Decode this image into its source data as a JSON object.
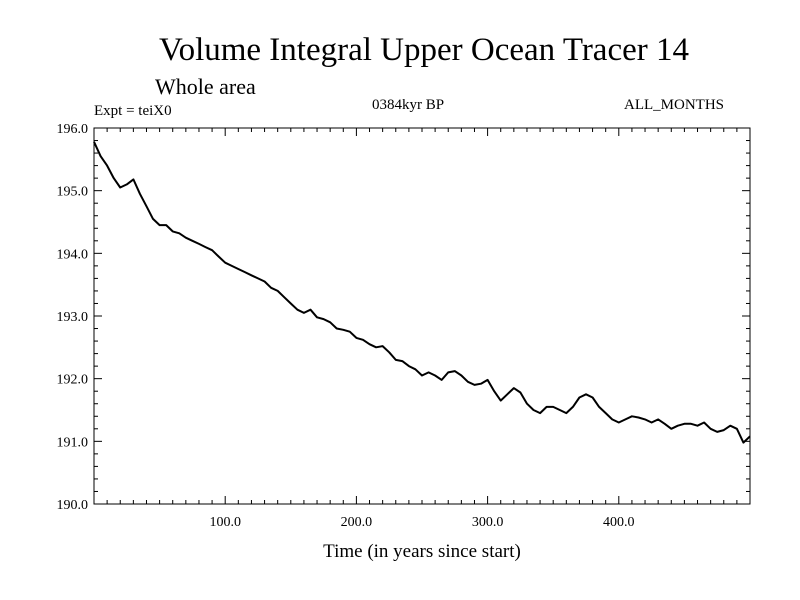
{
  "chart_data": {
    "type": "line",
    "title": "Volume Integral Upper Ocean Tracer 14",
    "subtitle": "Whole area",
    "annotations": {
      "experiment": "Expt = teiX0",
      "period": "0384kyr BP",
      "months": "ALL_MONTHS"
    },
    "xlabel": "Time (in years since start)",
    "ylabel": "",
    "xlim": [
      0,
      500
    ],
    "ylim": [
      190.0,
      196.0
    ],
    "x_ticks": [
      100,
      200,
      300,
      400
    ],
    "x_tick_labels": [
      "100.0",
      "200.0",
      "300.0",
      "400.0"
    ],
    "y_ticks": [
      190,
      191,
      192,
      193,
      194,
      195,
      196
    ],
    "y_tick_labels": [
      "190.0",
      "191.0",
      "192.0",
      "193.0",
      "194.0",
      "195.0",
      "196.0"
    ],
    "grid": false,
    "colors": {
      "line": "#000000",
      "axes": "#000000",
      "background": "#ffffff"
    },
    "series": [
      {
        "x": [
          0,
          5,
          10,
          15,
          20,
          25,
          30,
          35,
          40,
          45,
          50,
          55,
          60,
          65,
          70,
          75,
          80,
          85,
          90,
          95,
          100,
          105,
          110,
          115,
          120,
          125,
          130,
          135,
          140,
          145,
          150,
          155,
          160,
          165,
          170,
          175,
          180,
          185,
          190,
          195,
          200,
          205,
          210,
          215,
          220,
          225,
          230,
          235,
          240,
          245,
          250,
          255,
          260,
          265,
          270,
          275,
          280,
          285,
          290,
          295,
          300,
          305,
          310,
          315,
          320,
          325,
          330,
          335,
          340,
          345,
          350,
          355,
          360,
          365,
          370,
          375,
          380,
          385,
          390,
          395,
          400,
          405,
          410,
          415,
          420,
          425,
          430,
          435,
          440,
          445,
          450,
          455,
          460,
          465,
          470,
          475,
          480,
          485,
          490,
          495,
          500
        ],
        "values": [
          195.78,
          195.55,
          195.4,
          195.2,
          195.05,
          195.1,
          195.18,
          194.95,
          194.75,
          194.55,
          194.45,
          194.45,
          194.35,
          194.32,
          194.25,
          194.2,
          194.15,
          194.1,
          194.05,
          193.95,
          193.85,
          193.8,
          193.75,
          193.7,
          193.65,
          193.6,
          193.55,
          193.45,
          193.4,
          193.3,
          193.2,
          193.1,
          193.05,
          193.1,
          192.98,
          192.95,
          192.9,
          192.8,
          192.78,
          192.75,
          192.65,
          192.62,
          192.55,
          192.5,
          192.52,
          192.42,
          192.3,
          192.28,
          192.2,
          192.15,
          192.05,
          192.1,
          192.05,
          191.98,
          192.1,
          192.12,
          192.05,
          191.95,
          191.9,
          191.92,
          191.98,
          191.8,
          191.65,
          191.75,
          191.85,
          191.78,
          191.6,
          191.5,
          191.45,
          191.55,
          191.55,
          191.5,
          191.45,
          191.55,
          191.7,
          191.75,
          191.7,
          191.55,
          191.45,
          191.35,
          191.3,
          191.35,
          191.4,
          191.38,
          191.35,
          191.3,
          191.35,
          191.28,
          191.2,
          191.25,
          191.28,
          191.28,
          191.25,
          191.3,
          191.2,
          191.15,
          191.18,
          191.25,
          191.2,
          190.98,
          191.08
        ]
      }
    ]
  }
}
